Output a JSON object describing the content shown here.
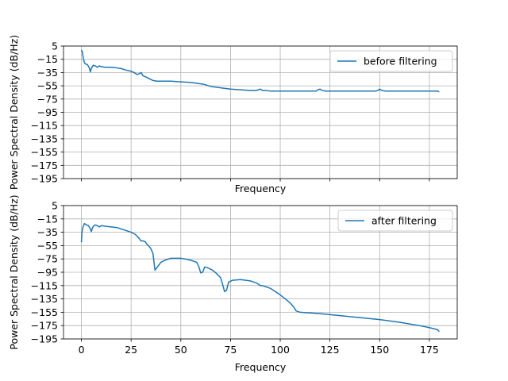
{
  "chart_data": [
    {
      "type": "line",
      "xlabel": "Frequency",
      "ylabel": "Power Spectral Density (dB/Hz)",
      "xlim": [
        -9,
        189
      ],
      "ylim": [
        -195,
        5
      ],
      "xticks": [
        0,
        25,
        50,
        75,
        100,
        125,
        150,
        175
      ],
      "xtick_labels_visible": false,
      "yticks": [
        5,
        -15,
        -35,
        -55,
        -75,
        -95,
        -115,
        -135,
        -155,
        -175,
        -195
      ],
      "ytick_labels": [
        "5",
        "−15",
        "−35",
        "−55",
        "−75",
        "−95",
        "−115",
        "−135",
        "−155",
        "−175",
        "−195"
      ],
      "grid": true,
      "legend_position": "upper-right",
      "series": [
        {
          "name": "before filtering",
          "color": "#1f77b4",
          "x": [
            0,
            0.5,
            1,
            1.5,
            2,
            3,
            4,
            4.5,
            5,
            5.5,
            6,
            7,
            8,
            9,
            10,
            12,
            15,
            18,
            20,
            22,
            25,
            27,
            28,
            29,
            30,
            31,
            32,
            34,
            36,
            38,
            40,
            45,
            50,
            55,
            60,
            62,
            65,
            70,
            75,
            80,
            85,
            88,
            89,
            90,
            91,
            93,
            95,
            100,
            105,
            110,
            115,
            118,
            119,
            120,
            121,
            123,
            125,
            130,
            135,
            140,
            145,
            148,
            149,
            150,
            151,
            153,
            155,
            160,
            165,
            170,
            175,
            179,
            180
          ],
          "y": [
            -1,
            -4,
            -14,
            -20,
            -22,
            -23,
            -28,
            -34,
            -29,
            -26,
            -24,
            -25,
            -27,
            -25,
            -26,
            -27,
            -27,
            -28,
            -29,
            -31,
            -33,
            -36,
            -38,
            -37,
            -35,
            -40,
            -41,
            -44,
            -47,
            -48,
            -48,
            -48,
            -49,
            -50,
            -52,
            -53,
            -56,
            -58,
            -60,
            -61,
            -62,
            -62,
            -61,
            -60,
            -62,
            -62,
            -63,
            -63,
            -63,
            -63,
            -63,
            -63,
            -61,
            -60,
            -62,
            -63,
            -63,
            -63,
            -63,
            -63,
            -63,
            -63,
            -62,
            -60,
            -62,
            -63,
            -63,
            -63,
            -63,
            -63,
            -63,
            -63,
            -64
          ]
        }
      ]
    },
    {
      "type": "line",
      "xlabel": "Frequency",
      "ylabel": "Power Spectral Density (dB/Hz)",
      "xlim": [
        -9,
        189
      ],
      "ylim": [
        -195,
        5
      ],
      "xticks": [
        0,
        25,
        50,
        75,
        100,
        125,
        150,
        175
      ],
      "xtick_labels": [
        "0",
        "25",
        "50",
        "75",
        "100",
        "125",
        "150",
        "175"
      ],
      "yticks": [
        5,
        -15,
        -35,
        -55,
        -75,
        -95,
        -115,
        -135,
        -155,
        -175,
        -195
      ],
      "ytick_labels": [
        "5",
        "−15",
        "−35",
        "−55",
        "−75",
        "−95",
        "−115",
        "−135",
        "−155",
        "−175",
        "−195"
      ],
      "grid": true,
      "legend_position": "upper-right",
      "series": [
        {
          "name": "after filtering",
          "color": "#1f77b4",
          "x": [
            0,
            0.3,
            0.8,
            1.5,
            2.5,
            3.5,
            4.5,
            5,
            5.5,
            6,
            7,
            8,
            9,
            10,
            12,
            15,
            18,
            20,
            22,
            25,
            27,
            28,
            29,
            30,
            31,
            32,
            33,
            34,
            35,
            36,
            37,
            38,
            40,
            42,
            45,
            50,
            52,
            55,
            57,
            58,
            59,
            60,
            61,
            62,
            64,
            66,
            68,
            70,
            71,
            72,
            73,
            74,
            76,
            80,
            85,
            88,
            89,
            90,
            91,
            95,
            100,
            103,
            105,
            107,
            108,
            110,
            115,
            120,
            130,
            140,
            150,
            160,
            170,
            175,
            179,
            180
          ],
          "y": [
            -50,
            -35,
            -27,
            -22,
            -24,
            -25,
            -30,
            -34,
            -29,
            -26,
            -24,
            -25,
            -27,
            -25,
            -26,
            -27,
            -28,
            -30,
            -32,
            -35,
            -38,
            -41,
            -44,
            -48,
            -48,
            -49,
            -53,
            -56,
            -60,
            -67,
            -92,
            -88,
            -80,
            -77,
            -74,
            -74,
            -75,
            -77,
            -79,
            -80,
            -86,
            -96,
            -95,
            -87,
            -89,
            -92,
            -97,
            -103,
            -113,
            -124,
            -122,
            -110,
            -107,
            -106,
            -108,
            -111,
            -113,
            -115,
            -115,
            -119,
            -129,
            -136,
            -141,
            -148,
            -153,
            -155,
            -156,
            -157,
            -160,
            -163,
            -166,
            -170,
            -175,
            -178,
            -181,
            -184
          ]
        }
      ]
    }
  ]
}
